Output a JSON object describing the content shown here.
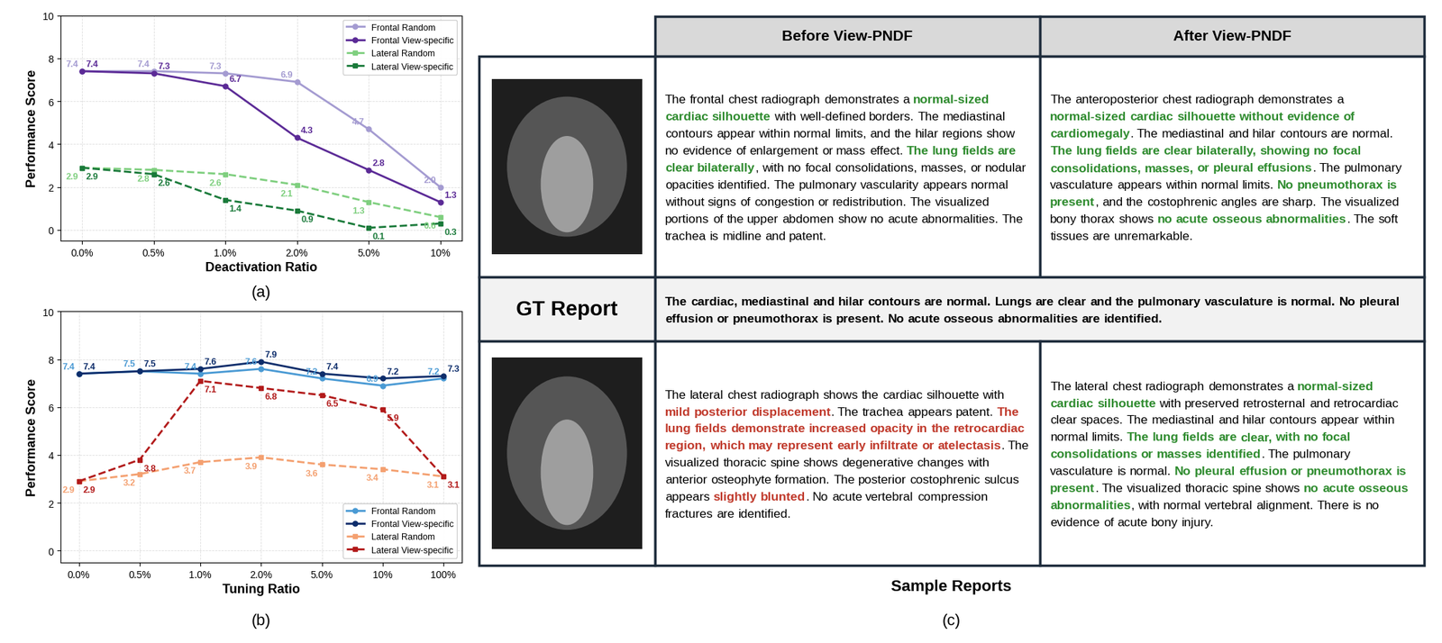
{
  "chart_data": [
    {
      "type": "line",
      "x_label": "Deactivation Ratio",
      "y_label": "Performance Score",
      "categories": [
        "0.0%",
        "0.5%",
        "1.0%",
        "2.0%",
        "5.0%",
        "10%"
      ],
      "ylim": [
        -0.5,
        10
      ],
      "yticks": [
        0,
        2,
        4,
        6,
        8,
        10
      ],
      "grid": true,
      "legend": "upper right",
      "data_labels": true,
      "annotations": [
        "(a)"
      ],
      "series": [
        {
          "name": "Frontal Random",
          "color": "#a49bd1",
          "marker": "circle",
          "line_style": "solid",
          "values": [
            7.4,
            7.4,
            7.3,
            6.9,
            4.7,
            2.0
          ]
        },
        {
          "name": "Frontal View-specific",
          "color": "#5b2a96",
          "marker": "circle",
          "line_style": "solid",
          "values": [
            7.4,
            7.3,
            6.7,
            4.3,
            2.8,
            1.3
          ]
        },
        {
          "name": "Lateral Random",
          "color": "#7fcf7f",
          "marker": "square",
          "line_style": "dashed",
          "values": [
            2.9,
            2.8,
            2.6,
            2.1,
            1.3,
            0.6
          ]
        },
        {
          "name": "Lateral View-specific",
          "color": "#1a7a3a",
          "marker": "square",
          "line_style": "dashed",
          "values": [
            2.9,
            2.6,
            1.4,
            0.9,
            0.1,
            0.3
          ]
        }
      ]
    },
    {
      "type": "line",
      "x_label": "Tuning Ratio",
      "y_label": "Performance Score",
      "categories": [
        "0.0%",
        "0.5%",
        "1.0%",
        "2.0%",
        "5.0%",
        "10%",
        "100%"
      ],
      "ylim": [
        -0.5,
        10
      ],
      "yticks": [
        0,
        2,
        4,
        6,
        8,
        10
      ],
      "grid": true,
      "legend": "lower right",
      "data_labels": true,
      "annotations": [
        "(b)"
      ],
      "series": [
        {
          "name": "Frontal Random",
          "color": "#4a9ad4",
          "marker": "circle",
          "line_style": "solid",
          "values": [
            7.4,
            7.5,
            7.4,
            7.6,
            7.2,
            6.9,
            7.2
          ]
        },
        {
          "name": "Frontal View-specific",
          "color": "#0d2d6b",
          "marker": "circle",
          "line_style": "solid",
          "values": [
            7.4,
            7.5,
            7.6,
            7.9,
            7.4,
            7.2,
            7.3
          ]
        },
        {
          "name": "Lateral Random",
          "color": "#f4a070",
          "marker": "square",
          "line_style": "dashed",
          "values": [
            2.9,
            3.2,
            3.7,
            3.9,
            3.6,
            3.4,
            3.1
          ]
        },
        {
          "name": "Lateral View-specific",
          "color": "#b21a1a",
          "marker": "square",
          "line_style": "dashed",
          "values": [
            2.9,
            3.8,
            7.1,
            6.8,
            6.5,
            5.9,
            3.1
          ]
        }
      ]
    }
  ],
  "sample_reports": {
    "headers": [
      "Before View-PNDF",
      "After View-PNDF"
    ],
    "frontal_row": {
      "before": [
        {
          "text": "The frontal chest radiograph demonstrates a "
        },
        {
          "text": "normal-sized cardiac silhouette",
          "color": "#2e8b2e"
        },
        {
          "text": " with well-defined borders. The mediastinal contours appear within normal limits, and the hilar regions show no evidence of enlargement or mass effect. "
        },
        {
          "text": "The lung fields are clear bilaterally",
          "color": "#2e8b2e"
        },
        {
          "text": ", with no focal consolidations, masses, or nodular opacities identified. The pulmonary vascularity appears normal without signs of congestion or redistribution. The visualized portions of the upper abdomen show no acute abnormalities. The trachea is midline and patent."
        }
      ],
      "after": [
        {
          "text": "The anteroposterior chest radiograph demonstrates a "
        },
        {
          "text": "normal-sized cardiac silhouette without evidence of cardiomegaly",
          "color": "#2e8b2e"
        },
        {
          "text": ". The mediastinal and hilar contours are normal. "
        },
        {
          "text": "The lung fields are clear bilaterally, showing no focal consolidations, masses, or pleural effusions",
          "color": "#2e8b2e"
        },
        {
          "text": ". The pulmonary vasculature appears within normal limits. "
        },
        {
          "text": "No pneumothorax is present",
          "color": "#2e8b2e"
        },
        {
          "text": ", and the costophrenic angles are sharp. The visualized bony thorax shows "
        },
        {
          "text": "no acute osseous abnormalities",
          "color": "#2e8b2e"
        },
        {
          "text": ". The soft tissues are unremarkable."
        }
      ]
    },
    "gt_row": {
      "label": "GT Report",
      "text": [
        {
          "text": "The cardiac, mediastinal and hilar contours are normal. Lungs are clear and the pulmonary vasculature is normal. No pleural effusion or pneumothorax is present. No acute osseous abnormalities are identified."
        }
      ]
    },
    "lateral_row": {
      "before": [
        {
          "text": "The lateral chest radiograph shows the cardiac silhouette with "
        },
        {
          "text": "mild posterior displacement",
          "color": "#c0392b"
        },
        {
          "text": ". The trachea appears patent. "
        },
        {
          "text": "The lung fields demonstrate increased opacity in the retrocardiac region, which may represent early infiltrate or atelectasis",
          "color": "#c0392b"
        },
        {
          "text": ". The visualized thoracic spine shows degenerative changes with anterior osteophyte formation. The posterior costophrenic sulcus appears "
        },
        {
          "text": "slightly blunted",
          "color": "#c0392b"
        },
        {
          "text": ". No acute vertebral compression fractures are identified."
        }
      ],
      "after": [
        {
          "text": "The lateral chest radiograph demonstrates a "
        },
        {
          "text": "normal-sized cardiac silhouette",
          "color": "#2e8b2e"
        },
        {
          "text": " with preserved retrosternal and retrocardiac clear spaces. The mediastinal and hilar contours appear within normal limits. "
        },
        {
          "text": "The lung fields are clear, with no focal consolidations or masses identified",
          "color": "#2e8b2e"
        },
        {
          "text": ". The pulmonary vasculature is normal. "
        },
        {
          "text": "No pleural effusion or pneumothorax is present",
          "color": "#2e8b2e"
        },
        {
          "text": ". The visualized thoracic spine shows "
        },
        {
          "text": "no acute osseous abnormalities",
          "color": "#2e8b2e"
        },
        {
          "text": ", with normal vertebral alignment. There is no evidence of acute bony injury."
        }
      ]
    },
    "caption": "Sample Reports",
    "label": "(c)"
  }
}
